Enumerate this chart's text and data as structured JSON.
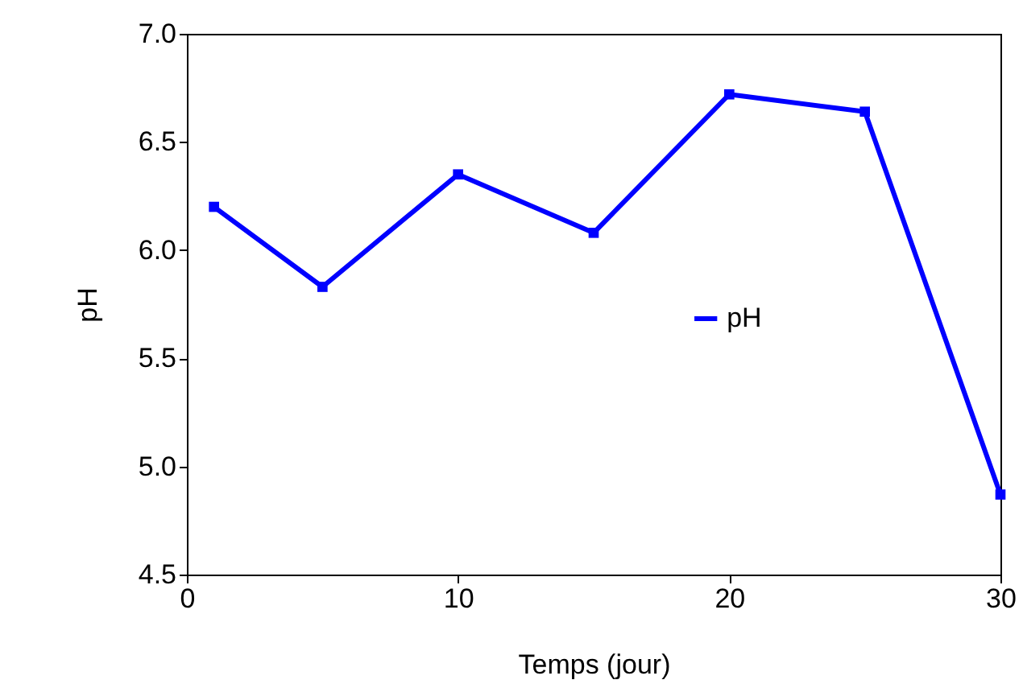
{
  "chart_data": {
    "type": "line",
    "xlabel": "Temps (jour)",
    "ylabel": "pH",
    "x": [
      1,
      5,
      10,
      15,
      20,
      25,
      30
    ],
    "series": [
      {
        "name": "pH",
        "color": "#0000ff",
        "values": [
          6.2,
          5.83,
          6.35,
          6.08,
          6.72,
          6.64,
          4.87
        ]
      }
    ],
    "xlim": [
      0,
      30
    ],
    "xticks": [
      0,
      10,
      20,
      30
    ],
    "ylim": [
      4.5,
      7.0
    ],
    "yticks": [
      4.5,
      {
        "value": 5,
        "label": "5.0"
      },
      5.5,
      {
        "value": 6,
        "label": "6.0"
      },
      6.5,
      {
        "value": 7,
        "label": "7.0"
      }
    ],
    "marker": "square",
    "grid": false,
    "legend": "right"
  }
}
